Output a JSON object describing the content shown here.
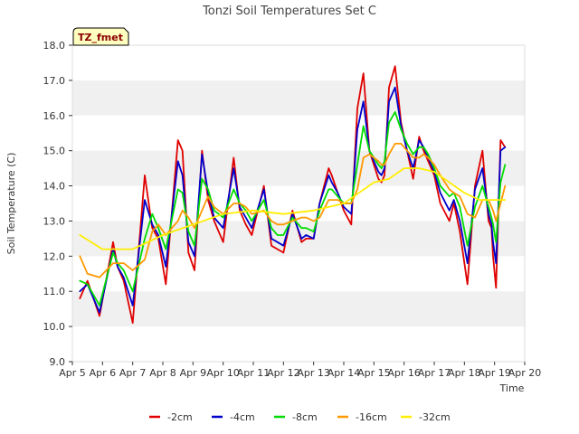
{
  "chart_data": {
    "type": "line",
    "title": "Tonzi Soil Temperatures Set C",
    "xlabel": "Time",
    "ylabel": "Soil Temperature (C)",
    "ylim": [
      9.0,
      18.0
    ],
    "xlim": [
      0,
      15
    ],
    "yticks": [
      "9.0",
      "10.0",
      "11.0",
      "12.0",
      "13.0",
      "14.0",
      "15.0",
      "16.0",
      "17.0",
      "18.0"
    ],
    "xticks": [
      "Apr 5",
      "Apr 6",
      "Apr 7",
      "Apr 8",
      "Apr 9",
      "Apr 10",
      "Apr 11",
      "Apr 12",
      "Apr 13",
      "Apr 14",
      "Apr 15",
      "Apr 16",
      "Apr 17",
      "Apr 18",
      "Apr 19",
      "Apr 20"
    ],
    "tag": "TZ_fmet",
    "grid": "horizontal bands",
    "legend_position": "bottom",
    "colors": {
      "band": "#f0f0f0",
      "background": "#ffffff",
      "tag_fill": "#ffffc0",
      "tag_text": "#8b0000"
    },
    "series": [
      {
        "name": "-2cm",
        "color": "#e00000",
        "x": [
          0.25,
          0.5,
          0.9,
          1.35,
          1.5,
          1.7,
          2.0,
          2.4,
          2.65,
          2.85,
          3.1,
          3.5,
          3.65,
          3.85,
          4.05,
          4.3,
          4.5,
          4.7,
          5.0,
          5.35,
          5.55,
          5.75,
          5.95,
          6.35,
          6.6,
          6.8,
          7.0,
          7.3,
          7.6,
          7.75,
          8.0,
          8.2,
          8.5,
          8.6,
          8.8,
          9.0,
          9.25,
          9.45,
          9.65,
          9.85,
          10.0,
          10.15,
          10.25,
          10.35,
          10.5,
          10.7,
          10.9,
          11.1,
          11.3,
          11.5,
          11.65,
          11.8,
          12.0,
          12.2,
          12.5,
          12.65,
          12.85,
          13.1,
          13.35,
          13.6,
          13.8,
          13.9,
          13.95,
          14.05,
          14.2,
          14.35
        ],
        "values": [
          10.8,
          11.3,
          10.3,
          12.4,
          11.7,
          11.3,
          10.1,
          14.3,
          12.8,
          12.5,
          11.2,
          15.3,
          15.0,
          12.1,
          11.6,
          15.0,
          13.6,
          13.0,
          12.4,
          14.8,
          13.3,
          12.9,
          12.6,
          14.0,
          12.3,
          12.2,
          12.1,
          13.3,
          12.4,
          12.5,
          12.5,
          13.5,
          14.5,
          14.3,
          13.8,
          13.3,
          12.9,
          16.2,
          17.2,
          15.0,
          14.6,
          14.2,
          14.1,
          14.3,
          16.8,
          17.4,
          15.8,
          15.0,
          14.2,
          15.4,
          15.0,
          14.7,
          14.3,
          13.5,
          13.0,
          13.5,
          12.7,
          11.2,
          14.0,
          15.0,
          13.0,
          12.8,
          12.0,
          11.1,
          15.3,
          15.1
        ]
      },
      {
        "name": "-4cm",
        "color": "#0000cc",
        "x": [
          0.25,
          0.5,
          0.9,
          1.35,
          1.5,
          1.7,
          2.0,
          2.4,
          2.65,
          2.85,
          3.1,
          3.5,
          3.65,
          3.85,
          4.05,
          4.3,
          4.5,
          4.7,
          5.0,
          5.35,
          5.55,
          5.75,
          5.95,
          6.35,
          6.6,
          6.8,
          7.0,
          7.3,
          7.6,
          7.75,
          8.0,
          8.2,
          8.5,
          8.6,
          8.8,
          9.0,
          9.25,
          9.45,
          9.65,
          9.85,
          10.0,
          10.15,
          10.25,
          10.35,
          10.5,
          10.7,
          10.9,
          11.1,
          11.3,
          11.5,
          11.65,
          11.8,
          12.0,
          12.2,
          12.5,
          12.65,
          12.85,
          13.1,
          13.35,
          13.6,
          13.8,
          13.9,
          13.95,
          14.05,
          14.2,
          14.35
        ],
        "values": [
          11.0,
          11.2,
          10.4,
          12.2,
          11.7,
          11.4,
          10.6,
          13.6,
          12.9,
          12.6,
          11.7,
          14.7,
          14.3,
          12.4,
          12.0,
          14.9,
          13.8,
          13.1,
          12.8,
          14.5,
          13.4,
          13.1,
          12.8,
          13.9,
          12.5,
          12.4,
          12.3,
          13.2,
          12.5,
          12.6,
          12.5,
          13.5,
          14.3,
          14.1,
          13.8,
          13.4,
          13.2,
          15.6,
          16.4,
          15.0,
          14.7,
          14.4,
          14.3,
          14.5,
          16.4,
          16.8,
          15.7,
          15.0,
          14.5,
          15.3,
          15.1,
          14.8,
          14.4,
          13.8,
          13.3,
          13.6,
          13.0,
          11.8,
          13.9,
          14.5,
          13.2,
          12.9,
          12.4,
          11.8,
          15.0,
          15.1
        ]
      },
      {
        "name": "-8cm",
        "color": "#00dd00",
        "x": [
          0.25,
          0.5,
          0.9,
          1.35,
          1.5,
          1.7,
          2.0,
          2.4,
          2.65,
          2.85,
          3.1,
          3.5,
          3.65,
          3.85,
          4.05,
          4.3,
          4.5,
          4.7,
          5.0,
          5.35,
          5.55,
          5.75,
          5.95,
          6.35,
          6.6,
          6.8,
          7.0,
          7.3,
          7.6,
          7.75,
          8.0,
          8.2,
          8.5,
          8.6,
          8.8,
          9.0,
          9.25,
          9.45,
          9.65,
          9.85,
          10.0,
          10.15,
          10.25,
          10.35,
          10.5,
          10.7,
          10.9,
          11.1,
          11.3,
          11.5,
          11.65,
          11.8,
          12.0,
          12.2,
          12.5,
          12.65,
          12.85,
          13.1,
          13.35,
          13.6,
          13.8,
          13.9,
          13.95,
          14.05,
          14.2,
          14.35
        ],
        "values": [
          11.3,
          11.2,
          10.6,
          12.1,
          11.8,
          11.6,
          11.0,
          12.5,
          13.2,
          12.8,
          12.2,
          13.9,
          13.8,
          12.7,
          12.3,
          14.2,
          13.9,
          13.3,
          13.1,
          13.9,
          13.5,
          13.3,
          13.0,
          13.6,
          12.8,
          12.6,
          12.6,
          13.1,
          12.8,
          12.8,
          12.7,
          13.3,
          13.9,
          13.9,
          13.7,
          13.5,
          13.5,
          14.6,
          15.7,
          15.0,
          14.8,
          14.6,
          14.5,
          14.7,
          15.8,
          16.1,
          15.6,
          15.2,
          14.9,
          15.1,
          15.1,
          14.9,
          14.5,
          14.0,
          13.7,
          13.8,
          13.4,
          12.3,
          13.4,
          14.0,
          13.4,
          13.1,
          12.9,
          12.4,
          14.1,
          14.6
        ]
      },
      {
        "name": "-16cm",
        "color": "#ff9900",
        "x": [
          0.25,
          0.5,
          0.9,
          1.35,
          1.5,
          1.7,
          2.0,
          2.4,
          2.65,
          2.85,
          3.1,
          3.5,
          3.65,
          3.85,
          4.05,
          4.3,
          4.5,
          4.7,
          5.0,
          5.35,
          5.55,
          5.75,
          5.95,
          6.35,
          6.6,
          6.8,
          7.0,
          7.3,
          7.6,
          7.75,
          8.0,
          8.2,
          8.5,
          8.6,
          8.8,
          9.0,
          9.25,
          9.45,
          9.65,
          9.85,
          10.0,
          10.15,
          10.25,
          10.35,
          10.5,
          10.7,
          10.9,
          11.1,
          11.3,
          11.5,
          11.65,
          11.8,
          12.0,
          12.2,
          12.5,
          12.65,
          12.85,
          13.1,
          13.35,
          13.6,
          13.8,
          13.9,
          13.95,
          14.05,
          14.2,
          14.35
        ],
        "values": [
          12.0,
          11.5,
          11.4,
          11.8,
          11.8,
          11.8,
          11.6,
          11.9,
          12.7,
          12.9,
          12.6,
          13.0,
          13.3,
          13.1,
          12.8,
          13.3,
          13.7,
          13.4,
          13.2,
          13.5,
          13.5,
          13.4,
          13.2,
          13.3,
          13.0,
          12.9,
          12.9,
          13.0,
          13.1,
          13.1,
          13.0,
          13.1,
          13.6,
          13.6,
          13.6,
          13.5,
          13.5,
          13.9,
          14.8,
          14.9,
          14.8,
          14.7,
          14.6,
          14.6,
          14.9,
          15.2,
          15.2,
          15.0,
          14.8,
          14.8,
          14.9,
          14.8,
          14.6,
          14.3,
          13.9,
          13.8,
          13.7,
          13.2,
          13.1,
          13.6,
          13.6,
          13.4,
          13.3,
          13.0,
          13.5,
          14.0
        ]
      },
      {
        "name": "-32cm",
        "color": "#ffee00",
        "x": [
          0.25,
          1.0,
          2.0,
          3.0,
          4.0,
          5.0,
          6.0,
          7.0,
          8.0,
          9.0,
          10.0,
          10.5,
          11.0,
          11.5,
          12.0,
          12.5,
          13.0,
          13.5,
          14.0,
          14.35
        ],
        "values": [
          12.6,
          12.2,
          12.2,
          12.6,
          12.9,
          13.2,
          13.3,
          13.2,
          13.3,
          13.5,
          14.1,
          14.2,
          14.5,
          14.5,
          14.4,
          14.1,
          13.8,
          13.6,
          13.6,
          13.6
        ]
      }
    ]
  }
}
